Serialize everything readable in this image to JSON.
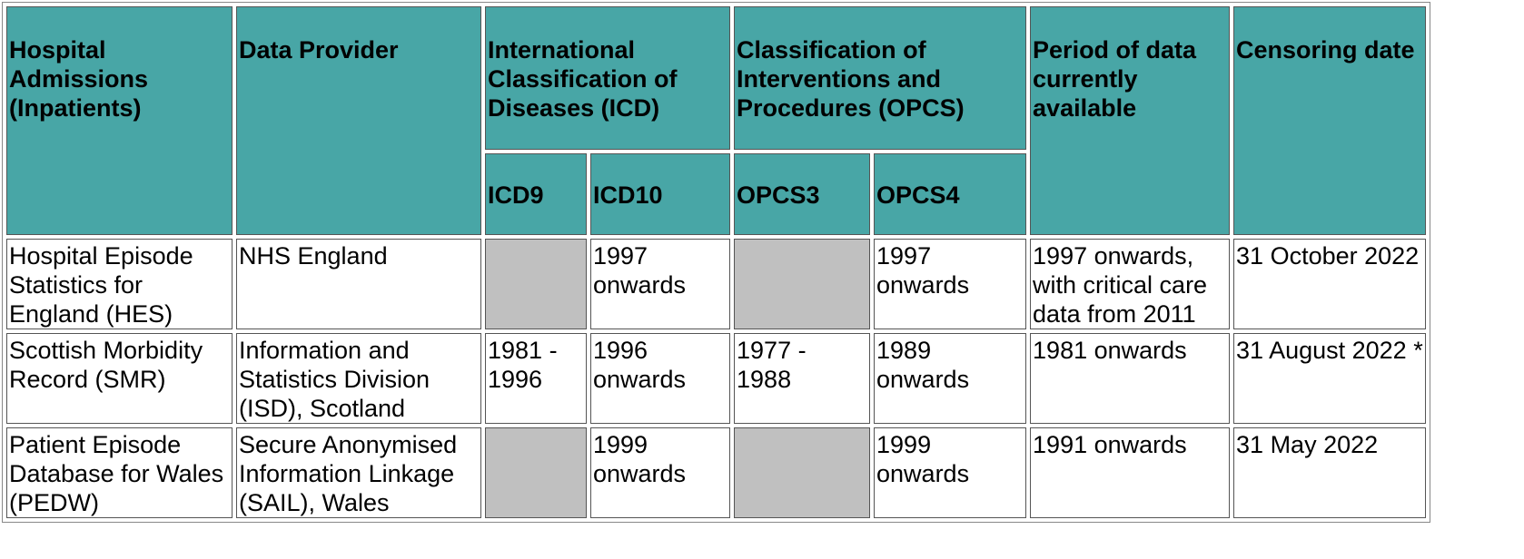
{
  "header_colors": {
    "header_bg": "#48a6a6",
    "blank_cell": "#c0c0c0"
  },
  "headers": {
    "hospital_admissions": "Hospital Admissions (Inpatients)",
    "data_provider": "Data Provider",
    "icd": "International Classification of Diseases (ICD)",
    "opcs": "Classification of Interventions and Procedures (OPCS)",
    "period": "Period of data currently available",
    "censoring": "Censoring date",
    "icd9": "ICD9",
    "icd10": "ICD10",
    "opcs3": "OPCS3",
    "opcs4": "OPCS4"
  },
  "rows": [
    {
      "name": "Hospital Episode Statistics for England (HES)",
      "provider": "NHS England",
      "icd9": "",
      "icd10": "1997 onwards",
      "opcs3": "",
      "opcs4": "1997 onwards",
      "period": "1997 onwards, with critical care data from 2011",
      "censoring": "31 October 2022"
    },
    {
      "name": "Scottish Morbidity Record (SMR)",
      "provider": "Information and Statistics Division (ISD), Scotland",
      "icd9": "1981 - 1996",
      "icd10": "1996 onwards",
      "opcs3": "1977 - 1988",
      "opcs4": "1989 onwards",
      "period": "1981 onwards",
      "censoring": "31 August 2022 *"
    },
    {
      "name": "Patient Episode Database for Wales (PEDW)",
      "provider": "Secure Anonymised Information Linkage (SAIL), Wales",
      "icd9": "",
      "icd10": "1999 onwards",
      "opcs3": "",
      "opcs4": "1999 onwards",
      "period": "1991 onwards",
      "censoring": "31 May 2022"
    }
  ]
}
